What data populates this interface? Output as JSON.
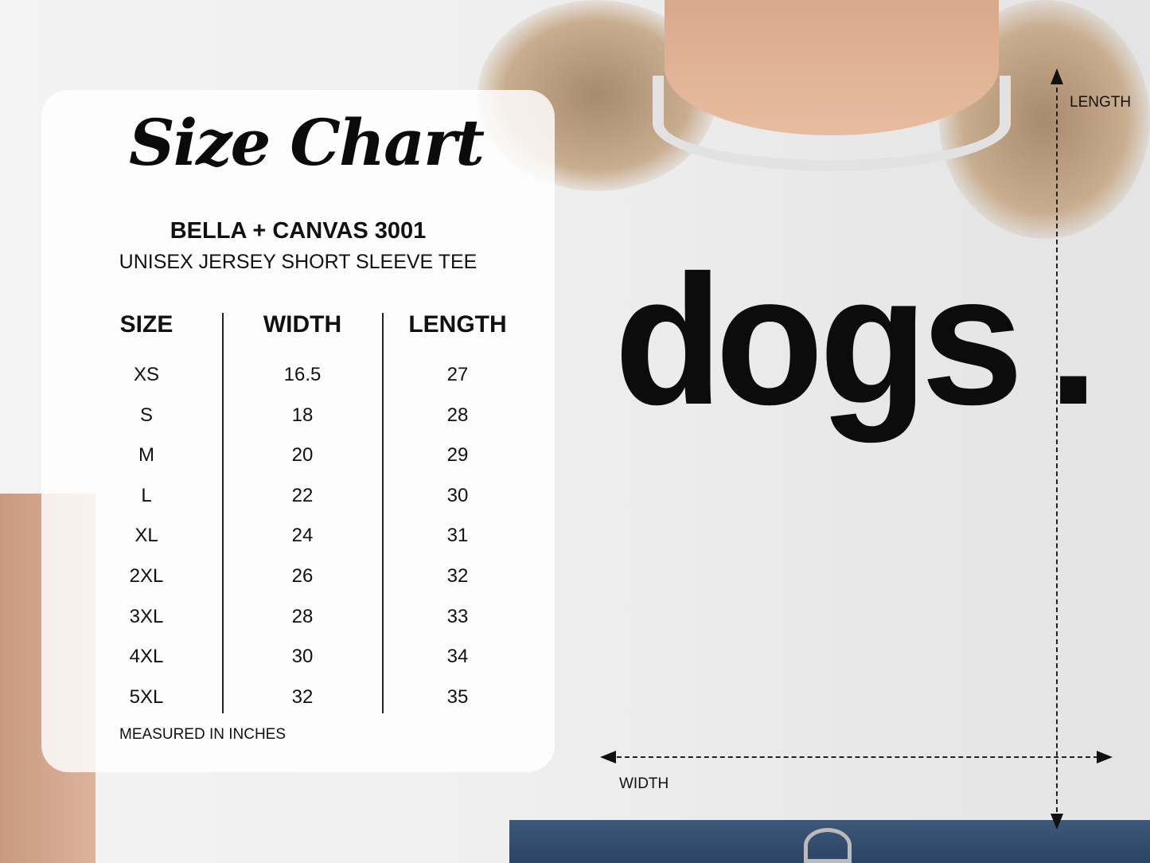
{
  "title": "Size Chart",
  "brand": "BELLA + CANVAS 3001",
  "subtitle": "UNISEX JERSEY SHORT SLEEVE TEE",
  "table": {
    "headers": [
      "SIZE",
      "WIDTH",
      "LENGTH"
    ],
    "sizes": [
      "XS",
      "S",
      "M",
      "L",
      "XL",
      "2XL",
      "3XL",
      "4XL",
      "5XL"
    ],
    "widths": [
      "16.5",
      "18",
      "20",
      "22",
      "24",
      "26",
      "28",
      "30",
      "32"
    ],
    "lengths": [
      "27",
      "28",
      "29",
      "30",
      "31",
      "32",
      "33",
      "34",
      "35"
    ]
  },
  "footnote": "MEASURED IN INCHES",
  "shirt_print": "dogs.",
  "diagram": {
    "length_label": "LENGTH",
    "width_label": "WIDTH"
  }
}
